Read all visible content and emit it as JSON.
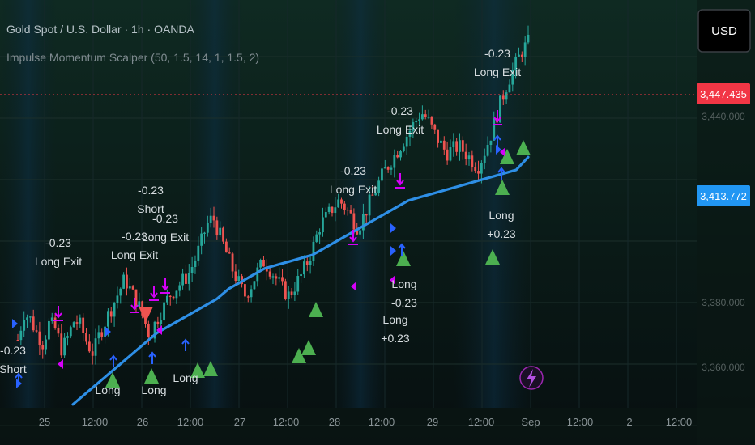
{
  "header": {
    "symbol_line": "Gold Spot / U.S. Dollar · 1h · OANDA",
    "indicator_line": "Impulse Momentum Scalper (50, 1.5, 14, 1, 1.5, 2)",
    "currency_button": "USD"
  },
  "colors": {
    "background": "#0b1714",
    "up": "#26a69a",
    "down": "#ef5350",
    "ma": "#2e8fe6",
    "signal_buy": "#4caf50",
    "signal_sell": "#ef5350",
    "exit_arrow": "#d500f9",
    "entry_arrow": "#2962ff",
    "price_badge": "#f23645",
    "ma_badge": "#2196f3"
  },
  "icons": {
    "bolt": "lightning-bolt-icon"
  },
  "chart_data": {
    "type": "candlestick",
    "title": "Gold Spot / U.S. Dollar · 1h · OANDA",
    "x_ticks": [
      "25",
      "12:00",
      "26",
      "12:00",
      "27",
      "12:00",
      "28",
      "12:00",
      "29",
      "12:00",
      "Sep",
      "12:00",
      "2",
      "12:00"
    ],
    "y_ticks": [
      "3,447.435",
      "3,440.000",
      "3,413.772",
      "3,380.000",
      "3,360.000"
    ],
    "last_price": "3,447.435",
    "ma_value": "3,413.772",
    "ylim": [
      3340,
      3460
    ],
    "grid": true,
    "close_path": [
      3360,
      3368,
      3366,
      3362,
      3359,
      3365,
      3363,
      3357,
      3361,
      3366,
      3364,
      3359,
      3356,
      3362,
      3366,
      3370,
      3374,
      3378,
      3374,
      3371,
      3366,
      3361,
      3366,
      3369,
      3373,
      3375,
      3377,
      3379,
      3383,
      3388,
      3394,
      3396,
      3391,
      3386,
      3381,
      3377,
      3373,
      3376,
      3380,
      3383,
      3381,
      3378,
      3375,
      3373,
      3376,
      3379,
      3383,
      3388,
      3394,
      3396,
      3399,
      3401,
      3399,
      3396,
      3393,
      3397,
      3401,
      3405,
      3409,
      3412,
      3415,
      3418,
      3421,
      3424,
      3427,
      3425,
      3421,
      3418,
      3415,
      3416,
      3417,
      3415,
      3413,
      3411,
      3415,
      3420,
      3426,
      3432,
      3437,
      3441,
      3445,
      3447.435
    ],
    "ma_path": [
      3341,
      3344,
      3347,
      3350,
      3353,
      3356,
      3359,
      3362,
      3364,
      3366,
      3368,
      3370,
      3372,
      3375,
      3377,
      3379,
      3381,
      3382,
      3383,
      3384,
      3385,
      3387,
      3389,
      3391,
      3393,
      3395,
      3397,
      3399,
      3401,
      3402,
      3403,
      3404,
      3405,
      3406,
      3407,
      3408,
      3409,
      3410,
      3413.772
    ],
    "annotations": [
      {
        "label": "-0.23",
        "sub": "Short",
        "x": 16,
        "y": 438
      },
      {
        "label": "-0.23",
        "sub": "Long Exit",
        "x": 72,
        "y": 305
      },
      {
        "label": "-0.23",
        "sub": "Long Exit",
        "x": 166,
        "y": 297
      },
      {
        "label": "-0.23",
        "sub": "Short",
        "x": 186,
        "y": 240
      },
      {
        "label": "-0.23",
        "sub": "Long Exit",
        "x": 204,
        "y": 275
      },
      {
        "label": "-0.23",
        "sub": "Long Exit",
        "x": 436,
        "y": 216
      },
      {
        "label": "-0.23",
        "sub": "Long Exit",
        "x": 494,
        "y": 142
      },
      {
        "label": "-0.23",
        "sub": "Long Exit",
        "x": 614,
        "y": 71
      },
      {
        "label": "Long",
        "sub": "-0.23",
        "x": 499,
        "y": 356
      },
      {
        "label": "Long",
        "sub": "+0.23",
        "x": 488,
        "y": 400
      },
      {
        "label": "Long",
        "sub": "+0.23",
        "x": 619,
        "y": 271
      },
      {
        "label": "Long",
        "sub": "",
        "x": 229,
        "y": 472
      },
      {
        "label": "Long",
        "sub": "",
        "x": 190,
        "y": 487
      },
      {
        "label": "Long",
        "sub": "",
        "x": 133,
        "y": 487
      }
    ]
  }
}
